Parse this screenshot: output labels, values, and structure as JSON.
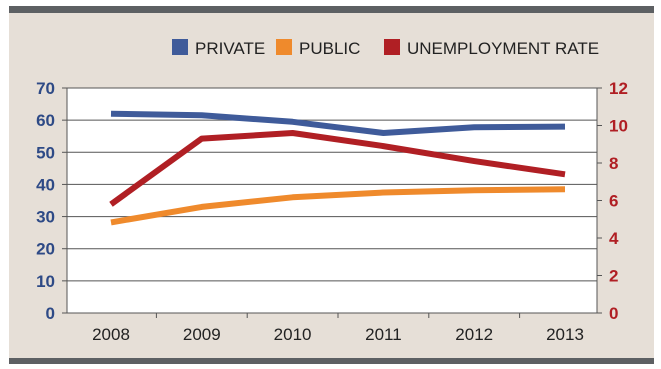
{
  "chart_data": {
    "type": "line",
    "categories": [
      "2008",
      "2009",
      "2010",
      "2011",
      "2012",
      "2013"
    ],
    "series": [
      {
        "name": "PRIVATE",
        "axis": "left",
        "color": "#3f5b9a",
        "values": [
          62,
          61.5,
          59.5,
          56,
          57.8,
          58
        ]
      },
      {
        "name": "PUBLIC",
        "axis": "left",
        "color": "#ef8a2c",
        "values": [
          28.2,
          33,
          36,
          37.5,
          38.2,
          38.5
        ]
      },
      {
        "name": "UNEMPLOYMENT RATE",
        "axis": "right",
        "color": "#b01f24",
        "values": [
          5.8,
          9.3,
          9.6,
          8.9,
          8.1,
          7.4
        ]
      }
    ],
    "y_left": {
      "min": 0,
      "max": 70,
      "step": 10,
      "ticks": [
        "0",
        "10",
        "20",
        "30",
        "40",
        "50",
        "60",
        "70"
      ],
      "color": "#2e4a86"
    },
    "y_right": {
      "min": 0,
      "max": 12,
      "step": 2,
      "ticks": [
        "0",
        "2",
        "4",
        "6",
        "8",
        "10",
        "12"
      ],
      "color": "#b01f24"
    },
    "grid": true,
    "legend_position": "top"
  }
}
